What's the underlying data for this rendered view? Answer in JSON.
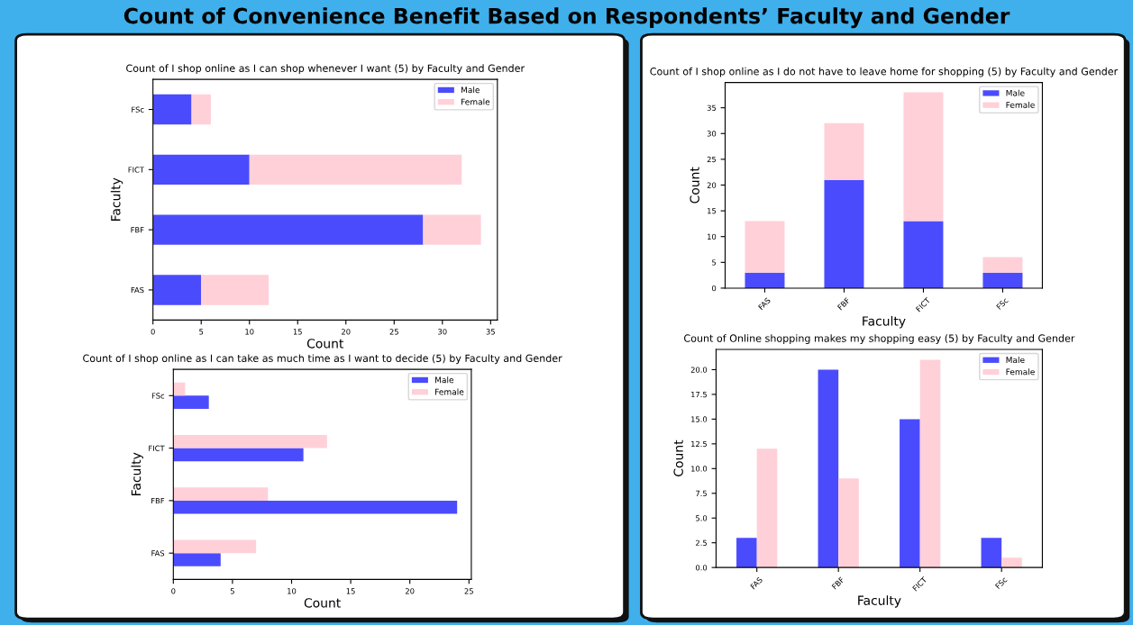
{
  "chart_data": [
    {
      "type": "other",
      "title": "Count of Convenience Benefit Based on Respondents’ Faculty and Gender"
    },
    {
      "type": "bar",
      "orientation": "horizontal",
      "stacked": true,
      "title": "Count of I shop online as I can shop whenever I want (5) by Faculty and Gender",
      "xlabel": "Count",
      "ylabel": "Faculty",
      "categories": [
        "FSc",
        "FICT",
        "FBF",
        "FAS"
      ],
      "series": [
        {
          "name": "Male",
          "color": "#4b4bfe",
          "values": [
            4,
            10,
            28,
            5
          ]
        },
        {
          "name": "Female",
          "color": "#ffd0d8",
          "values": [
            2,
            22,
            6,
            7
          ]
        }
      ],
      "xlim": [
        0,
        35.7
      ],
      "xticks": [
        0,
        5,
        10,
        15,
        20,
        25,
        30,
        35
      ],
      "legend": "top right",
      "grid": false
    },
    {
      "type": "bar",
      "stacked": true,
      "title": "Count of I shop online as I do not have to leave home for shopping (5) by Faculty and Gender",
      "xlabel": "Faculty",
      "ylabel": "Count",
      "categories": [
        "FAS",
        "FBF",
        "FICT",
        "FSc"
      ],
      "series": [
        {
          "name": "Male",
          "color": "#4b4bfe",
          "values": [
            3,
            21,
            13,
            3
          ]
        },
        {
          "name": "Female",
          "color": "#ffd0d8",
          "values": [
            10,
            11,
            25,
            3
          ]
        }
      ],
      "ylim": [
        0,
        39.9
      ],
      "yticks": [
        0,
        5,
        10,
        15,
        20,
        25,
        30,
        35
      ],
      "legend": "top right",
      "grid": false
    },
    {
      "type": "bar",
      "orientation": "horizontal",
      "title": "Count of I shop online as I can take as much time as I want to decide (5) by Faculty and Gender",
      "xlabel": "Count",
      "ylabel": "Faculty",
      "categories": [
        "FSc",
        "FICT",
        "FBF",
        "FAS"
      ],
      "series": [
        {
          "name": "Male",
          "color": "#4b4bfe",
          "values": [
            3,
            11,
            24,
            4
          ]
        },
        {
          "name": "Female",
          "color": "#ffd0d8",
          "values": [
            1,
            13,
            8,
            7
          ]
        }
      ],
      "xlim": [
        0,
        25.2
      ],
      "xticks": [
        0,
        5,
        10,
        15,
        20,
        25
      ],
      "legend": "top right",
      "grid": false
    },
    {
      "type": "bar",
      "title": "Count of Online shopping makes my shopping easy (5) by Faculty and Gender",
      "xlabel": "Faculty",
      "ylabel": "Count",
      "categories": [
        "FAS",
        "FBF",
        "FICT",
        "FSc"
      ],
      "series": [
        {
          "name": "Male",
          "color": "#4b4bfe",
          "values": [
            3,
            20,
            15,
            3
          ]
        },
        {
          "name": "Female",
          "color": "#ffd0d8",
          "values": [
            12,
            9,
            21,
            1
          ]
        }
      ],
      "ylim": [
        0,
        22.05
      ],
      "yticks": [
        {
          "value": 0,
          "label": "0.0"
        },
        {
          "value": 2.5,
          "label": "2.5"
        },
        {
          "value": 5,
          "label": "5.0"
        },
        {
          "value": 7.5,
          "label": "7.5"
        },
        {
          "value": 10,
          "label": "10.0"
        },
        {
          "value": 12.5,
          "label": "12.5"
        },
        {
          "value": 15,
          "label": "15.0"
        },
        {
          "value": 17.5,
          "label": "17.5"
        },
        {
          "value": 20,
          "label": "20.0"
        }
      ],
      "legend": "top right",
      "grid": false
    }
  ]
}
